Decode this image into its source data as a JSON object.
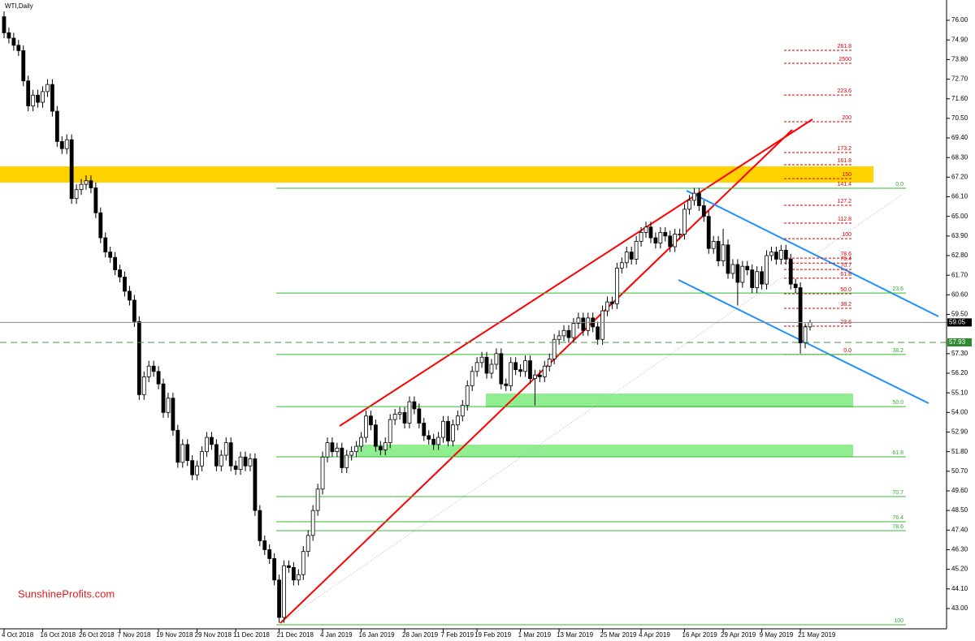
{
  "chart_data": {
    "type": "candlestick",
    "title": "WTI,Daily",
    "watermark": "SunshineProfits.com",
    "categories": [
      "4 Oct 2018",
      null,
      null,
      null,
      null,
      null,
      null,
      null,
      "16 Oct 2018",
      null,
      null,
      null,
      null,
      null,
      null,
      null,
      "26 Oct 2018",
      null,
      null,
      null,
      null,
      null,
      null,
      null,
      "7 Nov 2018",
      null,
      null,
      null,
      null,
      null,
      null,
      null,
      "19 Nov 2018",
      null,
      null,
      null,
      null,
      null,
      null,
      null,
      "29 Nov 2018",
      null,
      null,
      null,
      null,
      null,
      null,
      null,
      "11 Dec 2018",
      null,
      null,
      null,
      null,
      null,
      null,
      null,
      null,
      "21 Dec 2018",
      null,
      null,
      null,
      null,
      null,
      null,
      null,
      null,
      "4 Jan 2019",
      null,
      null,
      null,
      null,
      null,
      null,
      null,
      "16 Jan 2019",
      null,
      null,
      null,
      null,
      null,
      null,
      null,
      null,
      "28 Jan 2019",
      null,
      null,
      null,
      null,
      null,
      null,
      null,
      "7 Feb 2019",
      null,
      null,
      null,
      null,
      null,
      null,
      "19 Feb 2019",
      null,
      null,
      null,
      null,
      null,
      null,
      null,
      null,
      "1 Mar 2019",
      null,
      null,
      null,
      null,
      null,
      null,
      null,
      "13 Mar 2019",
      null,
      null,
      null,
      null,
      null,
      null,
      null,
      null,
      "25 Mar 2019",
      null,
      null,
      null,
      null,
      null,
      null,
      null,
      "4 Apr 2019",
      null,
      null,
      null,
      null,
      null,
      null,
      null,
      null,
      "16 Apr 2019",
      null,
      null,
      null,
      null,
      null,
      null,
      null,
      "29 Apr 2019",
      null,
      null,
      null,
      null,
      null,
      null,
      null,
      "9 May 2019",
      null,
      null,
      null,
      null,
      null,
      null,
      null,
      "21 May 2019",
      null,
      null
    ],
    "ohlc": [
      [
        76.2,
        76.5,
        75.0,
        75.3
      ],
      [
        75.3,
        75.6,
        74.7,
        75.0
      ],
      [
        75.0,
        75.3,
        74.3,
        74.6
      ],
      [
        74.6,
        74.9,
        74.0,
        74.3
      ],
      [
        74.3,
        74.6,
        72.3,
        72.6
      ],
      [
        72.6,
        72.9,
        70.9,
        71.2
      ],
      [
        71.2,
        72.1,
        70.9,
        71.8
      ],
      [
        71.8,
        72.1,
        71.1,
        71.4
      ],
      [
        71.4,
        72.3,
        71.1,
        72.0
      ],
      [
        72.0,
        72.7,
        71.7,
        72.4
      ],
      [
        72.4,
        72.7,
        70.6,
        70.9
      ],
      [
        70.9,
        71.2,
        68.9,
        69.2
      ],
      [
        69.2,
        69.5,
        68.5,
        68.8
      ],
      [
        68.8,
        69.6,
        68.5,
        69.3
      ],
      [
        69.3,
        69.6,
        65.7,
        66.0
      ],
      [
        66.0,
        66.8,
        65.7,
        66.5
      ],
      [
        66.5,
        67.1,
        66.2,
        66.8
      ],
      [
        66.8,
        67.3,
        66.5,
        67.0
      ],
      [
        67.0,
        67.3,
        66.3,
        66.6
      ],
      [
        66.6,
        66.9,
        64.9,
        65.2
      ],
      [
        65.2,
        65.5,
        63.5,
        63.8
      ],
      [
        63.8,
        64.1,
        62.7,
        63.0
      ],
      [
        63.0,
        63.3,
        62.4,
        62.7
      ],
      [
        62.7,
        63.0,
        61.7,
        62.0
      ],
      [
        62.0,
        62.3,
        61.3,
        61.6
      ],
      [
        61.6,
        61.9,
        60.5,
        60.8
      ],
      [
        60.8,
        61.1,
        60.0,
        60.3
      ],
      [
        60.3,
        60.6,
        58.8,
        59.1
      ],
      [
        59.1,
        59.4,
        54.7,
        55.0
      ],
      [
        55.0,
        56.3,
        54.7,
        56.0
      ],
      [
        56.0,
        56.9,
        55.7,
        56.6
      ],
      [
        56.6,
        56.9,
        56.0,
        56.3
      ],
      [
        56.3,
        56.6,
        55.3,
        55.6
      ],
      [
        55.6,
        55.9,
        53.7,
        54.0
      ],
      [
        54.0,
        55.1,
        53.7,
        54.8
      ],
      [
        54.8,
        55.1,
        52.7,
        53.0
      ],
      [
        53.0,
        53.3,
        50.9,
        51.2
      ],
      [
        51.2,
        52.5,
        50.9,
        52.2
      ],
      [
        52.2,
        52.5,
        51.0,
        51.3
      ],
      [
        51.3,
        51.6,
        50.2,
        50.5
      ],
      [
        50.5,
        51.3,
        50.2,
        51.0
      ],
      [
        51.0,
        52.1,
        50.7,
        51.8
      ],
      [
        51.8,
        52.9,
        51.5,
        52.6
      ],
      [
        52.6,
        52.9,
        51.9,
        52.2
      ],
      [
        52.2,
        52.5,
        50.7,
        51.0
      ],
      [
        51.0,
        51.9,
        50.7,
        51.6
      ],
      [
        51.6,
        52.6,
        51.3,
        52.3
      ],
      [
        52.3,
        52.6,
        50.7,
        51.0
      ],
      [
        51.0,
        51.3,
        50.5,
        50.8
      ],
      [
        50.8,
        51.8,
        50.5,
        51.5
      ],
      [
        51.5,
        51.8,
        50.7,
        51.0
      ],
      [
        51.0,
        51.7,
        50.7,
        51.4
      ],
      [
        51.4,
        51.7,
        48.2,
        48.5
      ],
      [
        48.5,
        48.8,
        46.5,
        46.8
      ],
      [
        46.8,
        47.1,
        46.0,
        46.3
      ],
      [
        46.3,
        46.6,
        45.5,
        45.8
      ],
      [
        45.8,
        46.1,
        44.3,
        44.6
      ],
      [
        44.6,
        44.9,
        42.2,
        42.5
      ],
      [
        42.5,
        45.7,
        42.2,
        45.4
      ],
      [
        45.4,
        45.7,
        45.0,
        45.3
      ],
      [
        45.3,
        45.6,
        44.3,
        44.6
      ],
      [
        44.6,
        45.2,
        44.3,
        44.9
      ],
      [
        44.9,
        46.5,
        44.6,
        46.2
      ],
      [
        46.2,
        47.4,
        45.9,
        47.1
      ],
      [
        47.1,
        48.8,
        46.8,
        48.5
      ],
      [
        48.5,
        50.0,
        48.2,
        49.7
      ],
      [
        49.7,
        51.8,
        49.4,
        51.5
      ],
      [
        51.5,
        52.6,
        51.2,
        52.3
      ],
      [
        52.3,
        52.6,
        51.5,
        51.8
      ],
      [
        51.8,
        52.3,
        51.5,
        52.0
      ],
      [
        52.0,
        52.3,
        50.6,
        50.9
      ],
      [
        50.9,
        51.9,
        50.6,
        51.6
      ],
      [
        51.6,
        52.1,
        51.3,
        51.8
      ],
      [
        51.8,
        52.4,
        51.5,
        52.1
      ],
      [
        52.1,
        52.9,
        51.8,
        52.6
      ],
      [
        52.6,
        54.1,
        52.3,
        53.8
      ],
      [
        53.8,
        54.1,
        53.0,
        53.3
      ],
      [
        53.3,
        53.6,
        51.8,
        52.1
      ],
      [
        52.1,
        52.4,
        51.6,
        51.9
      ],
      [
        51.9,
        52.6,
        51.6,
        52.3
      ],
      [
        52.3,
        53.9,
        52.0,
        53.6
      ],
      [
        53.6,
        54.2,
        53.3,
        53.9
      ],
      [
        53.9,
        54.3,
        53.6,
        54.0
      ],
      [
        54.0,
        54.3,
        53.1,
        53.4
      ],
      [
        53.4,
        54.9,
        53.1,
        54.6
      ],
      [
        54.6,
        54.9,
        53.9,
        54.2
      ],
      [
        54.2,
        54.5,
        53.1,
        53.4
      ],
      [
        53.4,
        53.7,
        52.4,
        52.7
      ],
      [
        52.7,
        53.0,
        52.2,
        52.5
      ],
      [
        52.5,
        52.8,
        51.9,
        52.2
      ],
      [
        52.2,
        52.9,
        51.9,
        52.6
      ],
      [
        52.6,
        53.8,
        52.3,
        53.5
      ],
      [
        53.5,
        53.8,
        52.1,
        52.4
      ],
      [
        52.4,
        53.6,
        52.1,
        53.3
      ],
      [
        53.3,
        54.1,
        53.0,
        53.8
      ],
      [
        53.8,
        54.7,
        53.5,
        54.4
      ],
      [
        54.4,
        55.8,
        54.1,
        55.5
      ],
      [
        55.5,
        56.6,
        55.2,
        56.3
      ],
      [
        56.3,
        57.1,
        56.0,
        56.8
      ],
      [
        56.8,
        57.4,
        56.5,
        57.1
      ],
      [
        57.1,
        57.4,
        55.9,
        56.2
      ],
      [
        56.2,
        57.0,
        55.9,
        56.7
      ],
      [
        56.7,
        57.6,
        56.4,
        57.3
      ],
      [
        57.3,
        57.6,
        55.3,
        55.6
      ],
      [
        55.6,
        55.9,
        55.2,
        55.5
      ],
      [
        55.5,
        57.1,
        55.2,
        56.8
      ],
      [
        56.8,
        57.1,
        56.1,
        56.4
      ],
      [
        56.4,
        56.7,
        56.0,
        56.3
      ],
      [
        56.3,
        57.2,
        56.0,
        56.9
      ],
      [
        56.9,
        57.2,
        55.6,
        55.9
      ],
      [
        55.9,
        56.4,
        54.4,
        56.1
      ],
      [
        56.1,
        56.4,
        55.7,
        56.0
      ],
      [
        56.0,
        56.9,
        55.7,
        56.6
      ],
      [
        56.6,
        57.3,
        56.3,
        57.0
      ],
      [
        57.0,
        58.4,
        56.7,
        58.1
      ],
      [
        58.1,
        58.6,
        57.8,
        58.3
      ],
      [
        58.3,
        58.9,
        58.0,
        58.6
      ],
      [
        58.6,
        58.9,
        57.9,
        58.2
      ],
      [
        58.2,
        59.3,
        57.9,
        59.0
      ],
      [
        59.0,
        59.6,
        58.7,
        59.3
      ],
      [
        59.3,
        59.6,
        58.3,
        58.6
      ],
      [
        58.6,
        59.6,
        58.3,
        59.3
      ],
      [
        59.3,
        59.6,
        58.5,
        58.8
      ],
      [
        58.8,
        59.1,
        57.8,
        58.1
      ],
      [
        58.1,
        60.0,
        57.8,
        59.7
      ],
      [
        59.7,
        60.5,
        59.4,
        60.2
      ],
      [
        60.2,
        60.5,
        59.8,
        60.1
      ],
      [
        60.1,
        62.4,
        59.8,
        62.1
      ],
      [
        62.1,
        62.7,
        61.8,
        62.4
      ],
      [
        62.4,
        63.3,
        62.1,
        63.0
      ],
      [
        63.0,
        63.3,
        62.3,
        62.6
      ],
      [
        62.6,
        63.9,
        62.3,
        63.6
      ],
      [
        63.6,
        64.4,
        63.3,
        64.1
      ],
      [
        64.1,
        64.7,
        63.8,
        64.4
      ],
      [
        64.4,
        64.7,
        63.5,
        63.8
      ],
      [
        63.8,
        64.1,
        63.2,
        63.5
      ],
      [
        63.5,
        64.4,
        63.2,
        64.1
      ],
      [
        64.1,
        64.4,
        63.6,
        63.9
      ],
      [
        63.9,
        64.2,
        63.0,
        63.3
      ],
      [
        63.3,
        64.3,
        63.0,
        64.0
      ],
      [
        64.0,
        64.3,
        63.7,
        64.0
      ],
      [
        64.0,
        65.7,
        63.7,
        65.4
      ],
      [
        65.4,
        66.2,
        65.1,
        65.9
      ],
      [
        65.9,
        66.6,
        65.6,
        66.3
      ],
      [
        66.3,
        66.6,
        65.3,
        65.6
      ],
      [
        65.6,
        65.9,
        64.7,
        65.0
      ],
      [
        65.0,
        65.3,
        62.9,
        63.2
      ],
      [
        63.2,
        63.9,
        62.9,
        63.6
      ],
      [
        63.6,
        63.9,
        62.2,
        62.5
      ],
      [
        62.5,
        64.3,
        62.2,
        63.4
      ],
      [
        63.4,
        63.7,
        61.5,
        61.8
      ],
      [
        61.8,
        62.6,
        61.5,
        62.3
      ],
      [
        62.3,
        62.6,
        60.0,
        61.3
      ],
      [
        61.3,
        62.5,
        61.0,
        62.2
      ],
      [
        62.2,
        62.5,
        61.7,
        62.0
      ],
      [
        62.0,
        62.3,
        60.7,
        61.0
      ],
      [
        61.0,
        62.2,
        60.7,
        61.9
      ],
      [
        61.9,
        62.2,
        60.9,
        61.2
      ],
      [
        61.2,
        63.1,
        60.9,
        62.8
      ],
      [
        62.8,
        63.3,
        62.5,
        63.0
      ],
      [
        63.0,
        63.3,
        62.3,
        62.6
      ],
      [
        62.6,
        63.4,
        62.3,
        63.1
      ],
      [
        63.1,
        63.4,
        62.3,
        62.6
      ],
      [
        62.6,
        62.9,
        60.9,
        61.2
      ],
      [
        61.2,
        61.5,
        60.7,
        61.0
      ],
      [
        61.0,
        61.3,
        57.3,
        57.9
      ],
      [
        57.9,
        59.0,
        57.6,
        58.8
      ],
      [
        58.8,
        59.2,
        58.6,
        59.05
      ]
    ],
    "ylim": [
      41.86,
      77.14
    ],
    "yticks": [
      {
        "value": 76,
        "label": "76.00"
      },
      {
        "value": 74.9,
        "label": "74.90"
      },
      {
        "value": 73.8,
        "label": "73.80"
      },
      {
        "value": 72.7,
        "label": "72.70"
      },
      {
        "value": 71.6,
        "label": "71.60"
      },
      {
        "value": 70.5,
        "label": "70.50"
      },
      {
        "value": 69.4,
        "label": "69.40"
      },
      {
        "value": 68.3,
        "label": "68.30"
      },
      {
        "value": 67.2,
        "label": "67.20"
      },
      {
        "value": 66.1,
        "label": "66.10"
      },
      {
        "value": 65,
        "label": "65.00"
      },
      {
        "value": 63.9,
        "label": "63.90"
      },
      {
        "value": 62.8,
        "label": "62.80"
      },
      {
        "value": 61.7,
        "label": "61.70"
      },
      {
        "value": 60.6,
        "label": "60.60"
      },
      {
        "value": 59.5,
        "label": "59.50"
      },
      {
        "value": 57.3,
        "label": "57.30"
      },
      {
        "value": 56.2,
        "label": "56.20"
      },
      {
        "value": 55.1,
        "label": "55.10"
      },
      {
        "value": 54,
        "label": "54.00"
      },
      {
        "value": 52.9,
        "label": "52.90"
      },
      {
        "value": 51.8,
        "label": "51.80"
      },
      {
        "value": 50.7,
        "label": "50.70"
      },
      {
        "value": 49.6,
        "label": "49.60"
      },
      {
        "value": 48.5,
        "label": "48.50"
      },
      {
        "value": 47.4,
        "label": "47.40"
      },
      {
        "value": 46.3,
        "label": "46.30"
      },
      {
        "value": 45.2,
        "label": "45.20"
      },
      {
        "value": 44.1,
        "label": "44.10"
      },
      {
        "value": 43,
        "label": "43.00"
      }
    ],
    "last_price": 59.05,
    "ask_line": 57.93,
    "fib_red": [
      {
        "label": "261.8",
        "price": 74.32
      },
      {
        "label": "2500",
        "price": 73.59
      },
      {
        "label": "223.6",
        "price": 71.81
      },
      {
        "label": "200",
        "price": 70.31
      },
      {
        "label": "173.2",
        "price": 68.58
      },
      {
        "label": "161.8",
        "price": 67.9
      },
      {
        "label": "150",
        "price": 67.12
      },
      {
        "label": "141.4",
        "price": 66.58
      },
      {
        "label": "127.2",
        "price": 65.62
      },
      {
        "label": "112.8",
        "price": 64.62
      },
      {
        "label": "100",
        "price": 63.75
      },
      {
        "label": "78.6",
        "price": 62.66
      },
      {
        "label": "76.4",
        "price": 62.38
      },
      {
        "label": "70.7",
        "price": 62.02
      },
      {
        "label": "61.8",
        "price": 61.53
      },
      {
        "label": "50.0",
        "price": 60.66
      },
      {
        "label": "38.2",
        "price": 59.84
      },
      {
        "label": "23.6",
        "price": 58.84
      },
      {
        "label": "0.0",
        "price": 57.25
      }
    ],
    "fib_green": [
      {
        "label": "0.0",
        "price": 66.58
      },
      {
        "label": "23.6",
        "price": 60.7
      },
      {
        "label": "38.2",
        "price": 57.25
      },
      {
        "label": "50.0",
        "price": 54.33
      },
      {
        "label": "61.8",
        "price": 51.51
      },
      {
        "label": "70.7",
        "price": 49.28
      },
      {
        "label": "76.4",
        "price": 47.87
      },
      {
        "label": "78.6",
        "price": 47.37
      },
      {
        "label": "100",
        "price": 42.09
      }
    ]
  }
}
